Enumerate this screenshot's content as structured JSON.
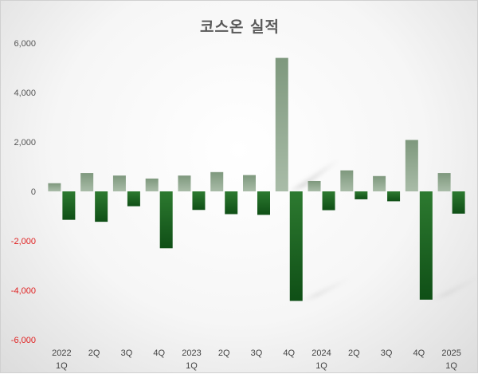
{
  "chart_data": {
    "type": "bar",
    "title": "코스온 실적",
    "categories": [
      [
        "2022",
        "1Q"
      ],
      [
        "2Q"
      ],
      [
        "3Q"
      ],
      [
        "4Q"
      ],
      [
        "2023",
        "1Q"
      ],
      [
        "2Q"
      ],
      [
        "3Q"
      ],
      [
        "4Q"
      ],
      [
        "2024",
        "1Q"
      ],
      [
        "2Q"
      ],
      [
        "3Q"
      ],
      [
        "4Q"
      ],
      [
        "2025",
        "1Q"
      ]
    ],
    "series": [
      {
        "values": [
          330,
          740,
          640,
          520,
          640,
          780,
          660,
          5400,
          420,
          850,
          620,
          2080,
          740
        ]
      },
      {
        "values": [
          -1150,
          -1230,
          -600,
          -2300,
          -750,
          -920,
          -950,
          -4430,
          -760,
          -320,
          -400,
          -4380,
          -900
        ]
      }
    ],
    "ylim": [
      -6000,
      6000
    ],
    "yticks": [
      "6,000",
      "4,000",
      "2,000",
      "0",
      "-2,000",
      "-4,000",
      "-6,000"
    ],
    "negative_tick_color": "#e02020",
    "colors": {
      "series1": "#8fa88e",
      "series2": "#1e6b26"
    },
    "grid": false,
    "legend": false
  }
}
